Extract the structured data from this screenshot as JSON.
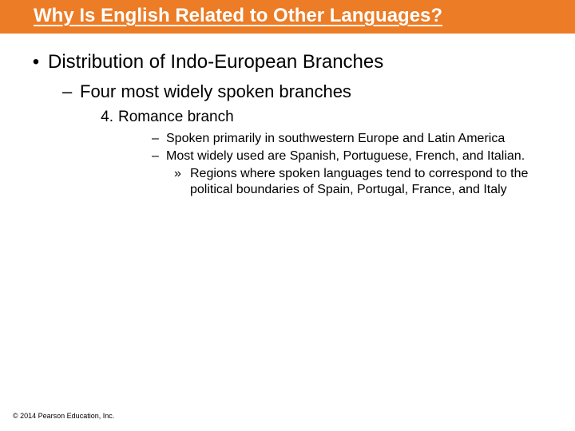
{
  "title": "Why Is English Related to Other Languages?",
  "bullet_char": "•",
  "dash_char": "–",
  "sub_mark": "»",
  "level1": "Distribution of Indo-European Branches",
  "level2": "Four most widely spoken branches",
  "level3_num": "4.",
  "level3": "Romance branch",
  "level4a": "Spoken primarily in southwestern Europe and Latin America",
  "level4b": "Most widely used are Spanish, Portuguese, French, and Italian.",
  "level5": "Regions where spoken languages tend to correspond to the political boundaries of Spain, Portugal, France, and Italy",
  "copyright": "© 2014 Pearson Education, Inc.",
  "colors": {
    "title_bg": "#ec7c26",
    "title_fg": "#ffffff",
    "body_bg": "#ffffff",
    "text": "#000000"
  }
}
